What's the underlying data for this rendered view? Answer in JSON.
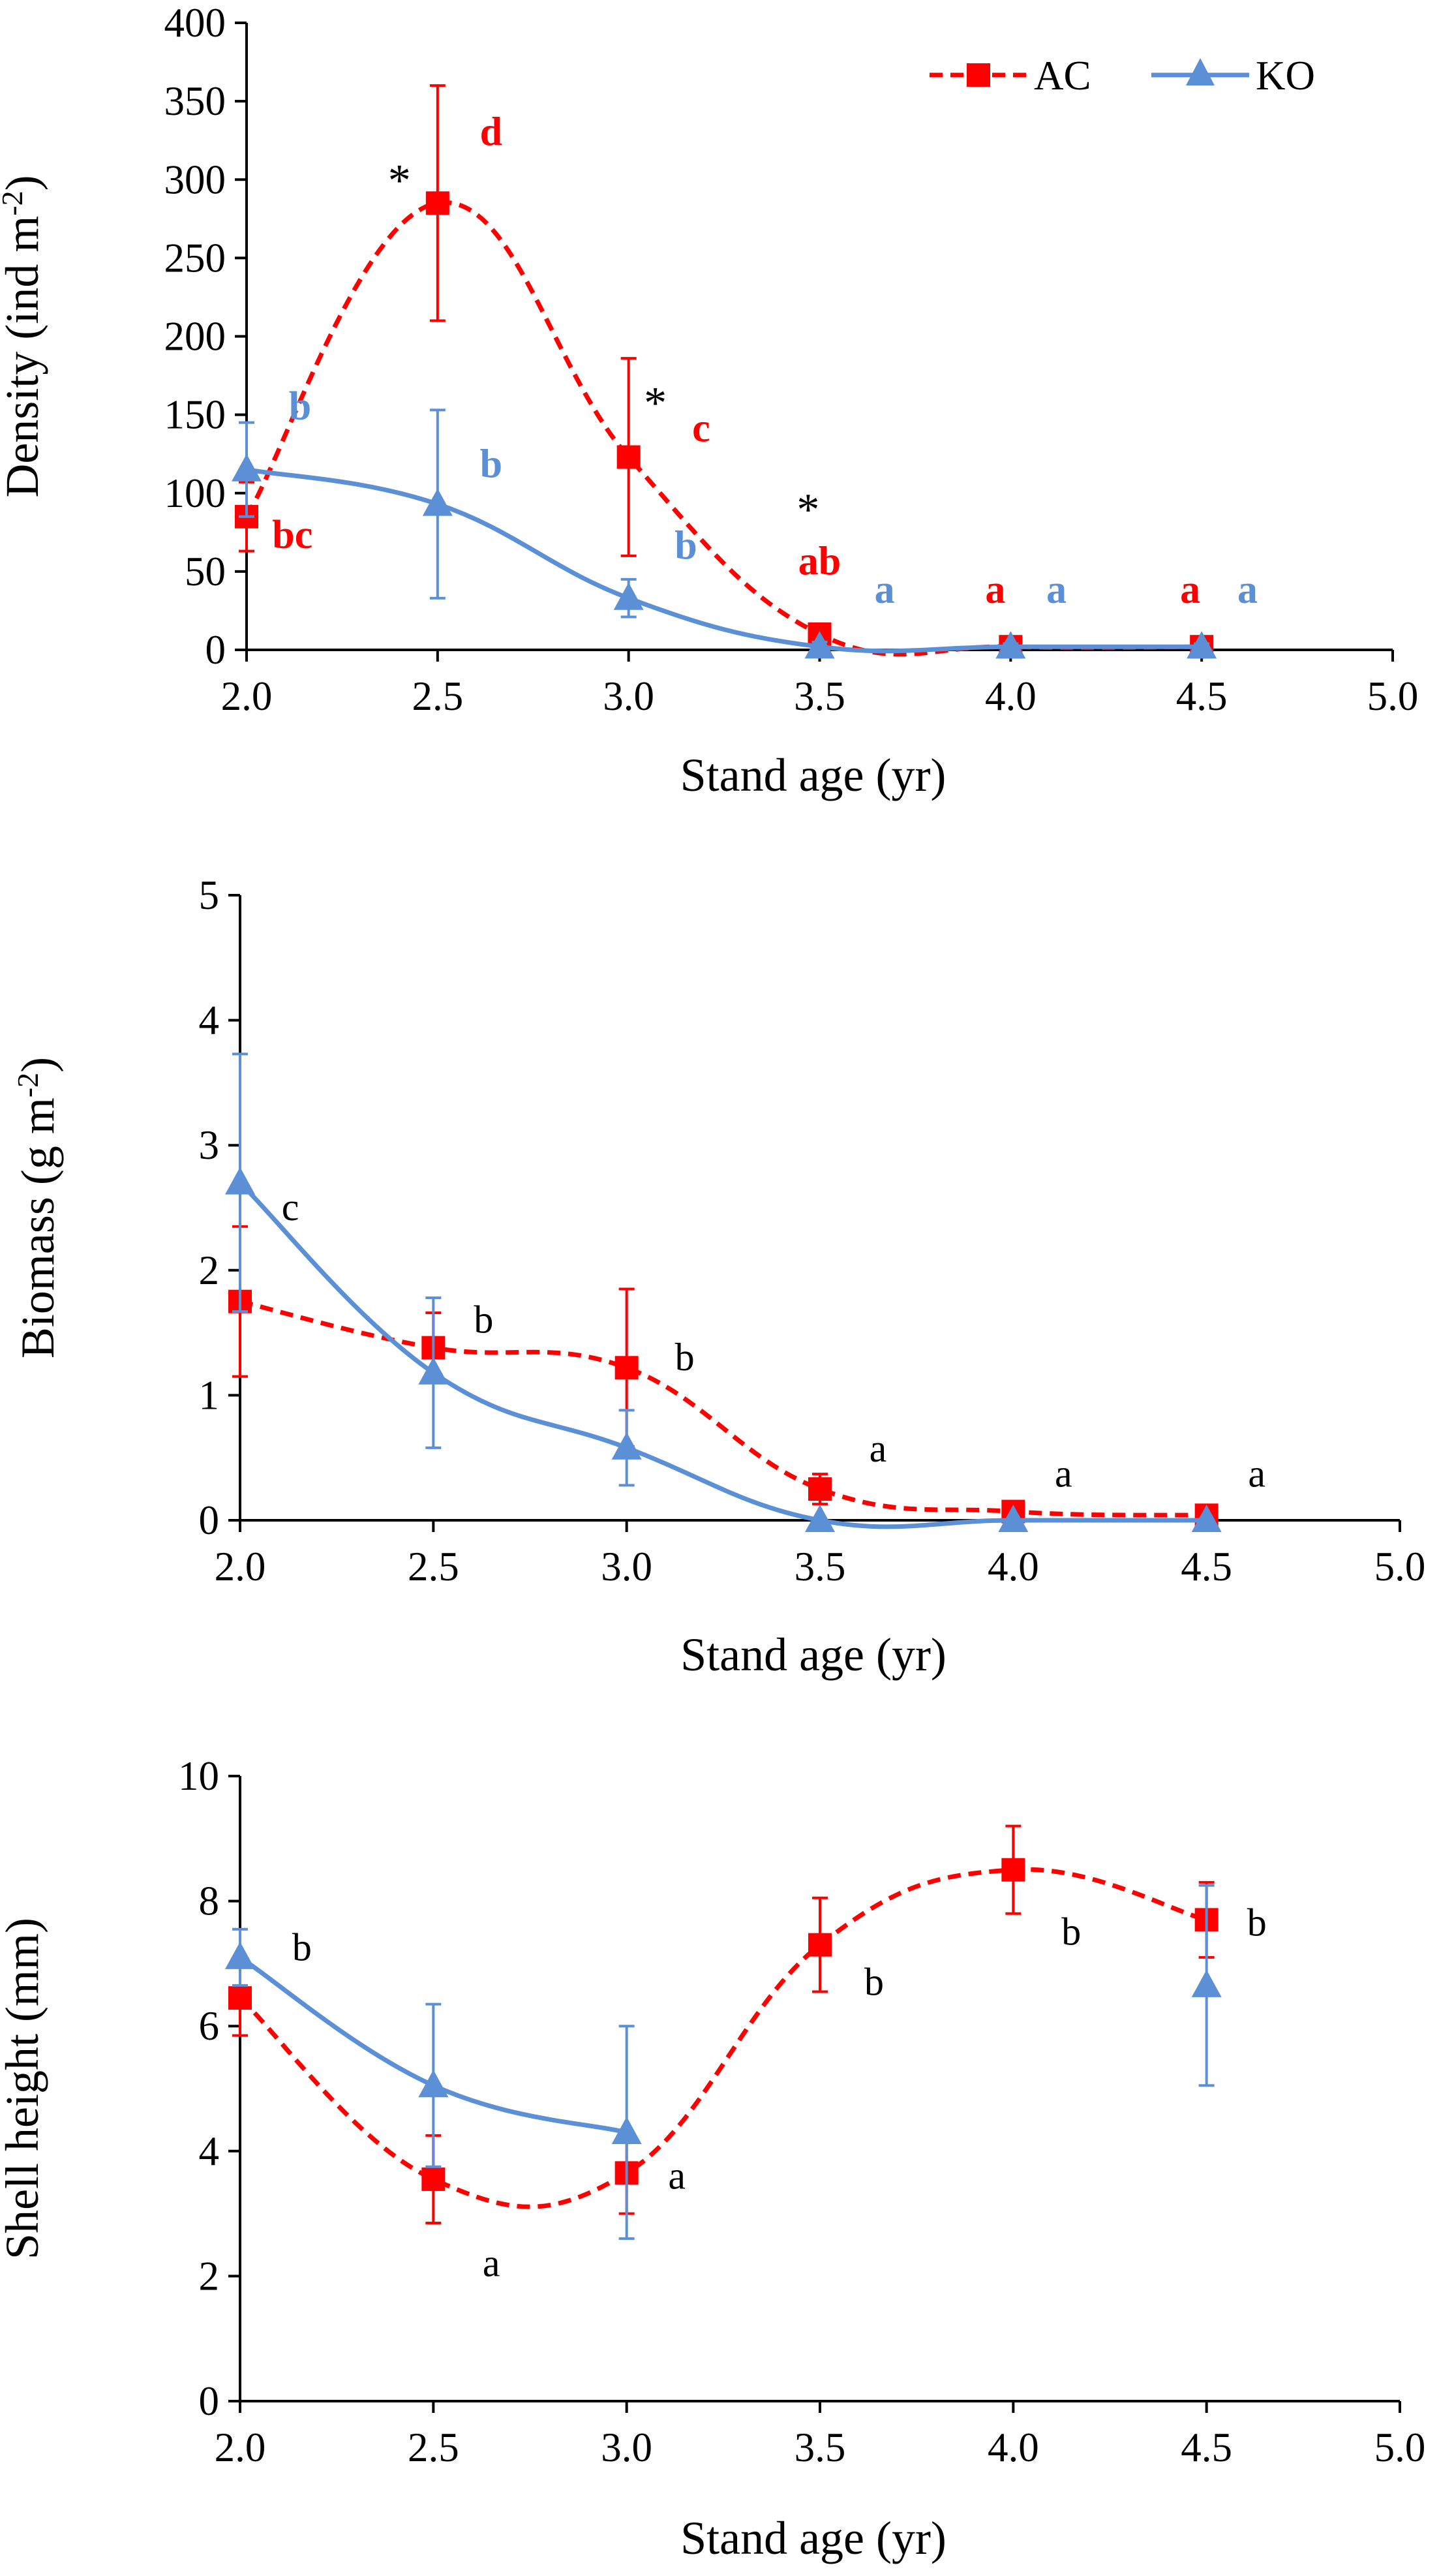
{
  "colors": {
    "AC": "#ff0000",
    "KO": "#5b8fd6",
    "axis": "#000000"
  },
  "legend": {
    "items": [
      {
        "name": "AC",
        "marker": "square",
        "dash": true,
        "color": "#ff0000"
      },
      {
        "name": "KO",
        "marker": "triangle",
        "dash": false,
        "color": "#5b8fd6"
      }
    ]
  },
  "chart_data": [
    {
      "id": "density",
      "type": "line",
      "title": "",
      "xlabel": "Stand age (yr)",
      "ylabel": "Density (ind m-2)",
      "ylabel_main": "Density (ind m",
      "ylabel_sup": "-2",
      "ylabel_end": ")",
      "xlim": [
        2.0,
        5.0
      ],
      "ylim": [
        0,
        400
      ],
      "xticks": [
        "2.0",
        "2.5",
        "3.0",
        "3.5",
        "4.0",
        "4.5",
        "5.0"
      ],
      "yticks": [
        "0",
        "50",
        "100",
        "150",
        "200",
        "250",
        "300",
        "350",
        "400"
      ],
      "x": [
        2.0,
        2.5,
        3.0,
        3.5,
        4.0,
        4.5
      ],
      "series": [
        {
          "name": "AC",
          "values": [
            85,
            285,
            123,
            10,
            2,
            2
          ],
          "errors": [
            22,
            75,
            63,
            5,
            2,
            2
          ]
        },
        {
          "name": "KO",
          "values": [
            115,
            93,
            33,
            2,
            2,
            2
          ],
          "errors": [
            30,
            60,
            12,
            3,
            2,
            2
          ]
        }
      ],
      "annotations": [
        {
          "text": "bc",
          "x": 2.12,
          "y": 65,
          "color": "AC",
          "style": "bold"
        },
        {
          "text": "b",
          "x": 2.14,
          "y": 147,
          "color": "KO",
          "style": "bold"
        },
        {
          "text": "*",
          "x": 2.4,
          "y": 290,
          "color": "black",
          "style": "star"
        },
        {
          "text": "d",
          "x": 2.64,
          "y": 322,
          "color": "AC",
          "style": "bold"
        },
        {
          "text": "b",
          "x": 2.64,
          "y": 110,
          "color": "KO",
          "style": "bold"
        },
        {
          "text": "*",
          "x": 3.07,
          "y": 148,
          "color": "black",
          "style": "star"
        },
        {
          "text": "c",
          "x": 3.19,
          "y": 133,
          "color": "AC",
          "style": "bold"
        },
        {
          "text": "b",
          "x": 3.15,
          "y": 58,
          "color": "KO",
          "style": "bold"
        },
        {
          "text": "*",
          "x": 3.47,
          "y": 80,
          "color": "black",
          "style": "star"
        },
        {
          "text": "ab",
          "x": 3.5,
          "y": 48,
          "color": "AC",
          "style": "bold"
        },
        {
          "text": "a",
          "x": 3.67,
          "y": 30,
          "color": "KO",
          "style": "bold"
        },
        {
          "text": "a",
          "x": 3.96,
          "y": 30,
          "color": "AC",
          "style": "bold"
        },
        {
          "text": "a",
          "x": 4.12,
          "y": 30,
          "color": "KO",
          "style": "bold"
        },
        {
          "text": "a",
          "x": 4.47,
          "y": 30,
          "color": "AC",
          "style": "bold"
        },
        {
          "text": "a",
          "x": 4.62,
          "y": 30,
          "color": "KO",
          "style": "bold"
        }
      ]
    },
    {
      "id": "biomass",
      "type": "line",
      "title": "",
      "xlabel": "Stand age (yr)",
      "ylabel": "Biomass (g m-2)",
      "ylabel_main": "Biomass (g m",
      "ylabel_sup": "-2",
      "ylabel_end": ")",
      "xlim": [
        2.0,
        5.0
      ],
      "ylim": [
        0,
        5
      ],
      "xticks": [
        "2.0",
        "2.5",
        "3.0",
        "3.5",
        "4.0",
        "4.5",
        "5.0"
      ],
      "yticks": [
        "0",
        "1",
        "2",
        "3",
        "4",
        "5"
      ],
      "x": [
        2.0,
        2.5,
        3.0,
        3.5,
        4.0,
        4.5
      ],
      "series": [
        {
          "name": "AC",
          "values": [
            1.75,
            1.38,
            1.22,
            0.25,
            0.07,
            0.04
          ],
          "errors": [
            0.6,
            0.28,
            0.63,
            0.12,
            0.03,
            0.02
          ]
        },
        {
          "name": "KO",
          "values": [
            2.7,
            1.18,
            0.58,
            0.0,
            0.0,
            0.0
          ],
          "errors": [
            1.03,
            0.6,
            0.3,
            0.0,
            0.0,
            0.0
          ]
        }
      ],
      "annotations": [
        {
          "text": "c",
          "x": 2.13,
          "y": 2.4,
          "color": "black",
          "style": "normal"
        },
        {
          "text": "b",
          "x": 2.63,
          "y": 1.5,
          "color": "black",
          "style": "normal"
        },
        {
          "text": "b",
          "x": 3.15,
          "y": 1.2,
          "color": "black",
          "style": "normal"
        },
        {
          "text": "a",
          "x": 3.65,
          "y": 0.47,
          "color": "black",
          "style": "normal"
        },
        {
          "text": "a",
          "x": 4.13,
          "y": 0.27,
          "color": "black",
          "style": "normal"
        },
        {
          "text": "a",
          "x": 4.63,
          "y": 0.27,
          "color": "black",
          "style": "normal"
        }
      ]
    },
    {
      "id": "shell_height",
      "type": "line",
      "title": "",
      "xlabel": "Stand age (yr)",
      "ylabel": "Shell height (mm)",
      "xlim": [
        2.0,
        5.0
      ],
      "ylim": [
        0,
        10
      ],
      "xticks": [
        "2.0",
        "2.5",
        "3.0",
        "3.5",
        "4.0",
        "4.5",
        "5.0"
      ],
      "yticks": [
        "0",
        "2",
        "4",
        "6",
        "8",
        "10"
      ],
      "x": [
        2.0,
        2.5,
        3.0,
        3.5,
        4.0,
        4.5
      ],
      "series": [
        {
          "name": "AC",
          "x": [
            2.0,
            2.5,
            3.0,
            3.5,
            4.0,
            4.5
          ],
          "values": [
            6.45,
            3.55,
            3.65,
            7.3,
            8.5,
            7.7
          ],
          "errors": [
            0.6,
            0.7,
            0.65,
            0.75,
            0.7,
            0.6
          ]
        },
        {
          "name": "KO",
          "x": [
            2.0,
            2.5,
            3.0,
            4.5
          ],
          "values": [
            7.1,
            5.05,
            4.3,
            6.65
          ],
          "errors": [
            0.45,
            1.3,
            1.7,
            1.6
          ],
          "connect_points": 3
        }
      ],
      "annotations": [
        {
          "text": "b",
          "x": 2.16,
          "y": 7.05,
          "color": "black",
          "style": "normal"
        },
        {
          "text": "a",
          "x": 2.65,
          "y": 2.0,
          "color": "black",
          "style": "normal"
        },
        {
          "text": "a",
          "x": 3.13,
          "y": 3.4,
          "color": "black",
          "style": "normal"
        },
        {
          "text": "b",
          "x": 3.64,
          "y": 6.5,
          "color": "black",
          "style": "normal"
        },
        {
          "text": "b",
          "x": 4.15,
          "y": 7.3,
          "color": "black",
          "style": "normal"
        },
        {
          "text": "b",
          "x": 4.63,
          "y": 7.45,
          "color": "black",
          "style": "normal"
        }
      ]
    }
  ]
}
